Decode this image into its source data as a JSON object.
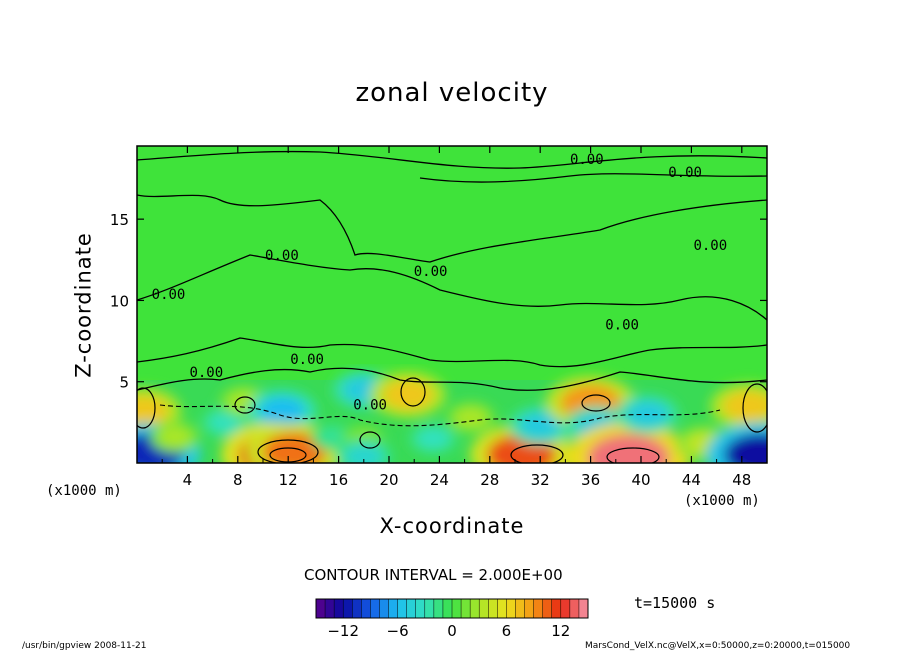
{
  "chart_data": {
    "type": "heatmap",
    "title": "zonal velocity",
    "xlabel": "X-coordinate",
    "ylabel": "Z-coordinate",
    "x_unit_left": "(x1000 m)",
    "x_unit_right": "(x1000 m)",
    "xlim": [
      0,
      50
    ],
    "ylim": [
      0,
      19.5
    ],
    "x_ticks": [
      "4",
      "8",
      "12",
      "16",
      "20",
      "24",
      "28",
      "32",
      "36",
      "40",
      "44",
      "48"
    ],
    "y_ticks": [
      "5",
      "10",
      "15"
    ],
    "contour_interval_text": "CONTOUR INTERVAL = 2.000E+00",
    "contour_label": "0.00",
    "colorbar": {
      "range": [
        -15,
        15
      ],
      "ticks": [
        "−12",
        "−6",
        "0",
        "6",
        "12"
      ],
      "tick_values": [
        -12,
        -6,
        0,
        6,
        12
      ]
    },
    "features": [
      {
        "x": 0.5,
        "z": 3.2,
        "value": 7
      },
      {
        "x": 1.0,
        "z": 0.6,
        "value": -11
      },
      {
        "x": 3.0,
        "z": 1.6,
        "value": 3
      },
      {
        "x": 7.0,
        "z": 2.5,
        "value": -3
      },
      {
        "x": 8.5,
        "z": 3.8,
        "value": 3
      },
      {
        "x": 11.5,
        "z": 3.2,
        "value": -6
      },
      {
        "x": 11.0,
        "z": 0.5,
        "value": 12
      },
      {
        "x": 12.5,
        "z": 0.7,
        "value": 10
      },
      {
        "x": 15.5,
        "z": 1.6,
        "value": -2
      },
      {
        "x": 18.0,
        "z": 4.5,
        "value": -5
      },
      {
        "x": 18.0,
        "z": 1.5,
        "value": 2
      },
      {
        "x": 18.0,
        "z": 0.4,
        "value": -4
      },
      {
        "x": 21.5,
        "z": 4.2,
        "value": 7
      },
      {
        "x": 23.5,
        "z": 1.5,
        "value": -3
      },
      {
        "x": 26.5,
        "z": 2.8,
        "value": 3
      },
      {
        "x": 30.5,
        "z": 0.5,
        "value": 11
      },
      {
        "x": 32.0,
        "z": 2.3,
        "value": -5
      },
      {
        "x": 36.0,
        "z": 3.7,
        "value": 9
      },
      {
        "x": 36.5,
        "z": 2.3,
        "value": -5
      },
      {
        "x": 39.0,
        "z": 0.3,
        "value": 14
      },
      {
        "x": 40.5,
        "z": 3.0,
        "value": -5
      },
      {
        "x": 45.0,
        "z": 1.2,
        "value": 4
      },
      {
        "x": 48.5,
        "z": 3.5,
        "value": 7
      },
      {
        "x": 49.5,
        "z": 0.5,
        "value": -12
      }
    ],
    "contour_labels": [
      {
        "x": 35.7,
        "z": 18.4
      },
      {
        "x": 43.5,
        "z": 17.6
      },
      {
        "x": 11.5,
        "z": 12.5
      },
      {
        "x": 23.3,
        "z": 11.5
      },
      {
        "x": 2.5,
        "z": 10.1
      },
      {
        "x": 38.5,
        "z": 8.2
      },
      {
        "x": 13.5,
        "z": 6.1
      },
      {
        "x": 5.5,
        "z": 5.3
      },
      {
        "x": 18.5,
        "z": 3.3
      },
      {
        "x": 45.5,
        "z": 13.1
      }
    ]
  },
  "time_label": "t=15000 s",
  "footer": {
    "left": "/usr/bin/gpview   2008-11-21",
    "right": "MarsCond_VelX.nc@VelX,x=0:50000,z=0:20000,t=015000"
  }
}
